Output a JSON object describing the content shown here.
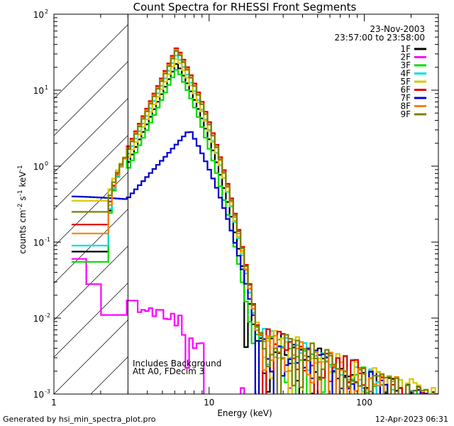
{
  "chart_data": {
    "type": "line",
    "title": "Count Spectra for RHESSI Front Segments",
    "xlabel": "Energy (keV)",
    "ylabel_parts": {
      "pre": "counts cm",
      "exp1": "-2",
      "mid1": " s",
      "exp2": "-1",
      "mid2": " keV",
      "exp3": "-1"
    },
    "xscale": "log",
    "yscale": "log",
    "xlim": [
      1,
      300
    ],
    "ylim": [
      0.001,
      100
    ],
    "x_ticks": [
      {
        "value": 1,
        "label": "1"
      },
      {
        "value": 10,
        "label": "10"
      },
      {
        "value": 100,
        "label": "100"
      }
    ],
    "y_ticks": [
      {
        "value": 0.001,
        "base": "10",
        "exp": "-3"
      },
      {
        "value": 0.01,
        "base": "10",
        "exp": "-2"
      },
      {
        "value": 0.1,
        "base": "10",
        "exp": "-1"
      },
      {
        "value": 1,
        "base": "10",
        "exp": "0"
      },
      {
        "value": 10,
        "base": "10",
        "exp": "1"
      },
      {
        "value": 100,
        "base": "10",
        "exp": "2"
      }
    ],
    "shaded_region": {
      "from": 1,
      "to": 3,
      "style": "hatched"
    },
    "date": "23-Nov-2003",
    "time_range": "23:57:00 to 23:58:00",
    "annotations": [
      "Includes Background",
      "Att A0, FDecim 3"
    ],
    "series": [
      {
        "name": "1F",
        "color": "#000000",
        "scale": 0.62,
        "low": 0.075,
        "tailshift": 0
      },
      {
        "name": "2F",
        "color": "#ff00ff",
        "type": "low"
      },
      {
        "name": "3F",
        "color": "#00dd00",
        "scale": 0.52,
        "low": 0.055,
        "tailshift": -0.4
      },
      {
        "name": "4F",
        "color": "#00e0e0",
        "scale": 0.8,
        "low": 0.09,
        "tailshift": 0.1
      },
      {
        "name": "5F",
        "color": "#d8c800",
        "scale": 0.72,
        "low": 0.35,
        "tailshift": 0.35
      },
      {
        "name": "6F",
        "color": "#e00000",
        "scale": 1.0,
        "low": 0.17,
        "tailshift": 0.15
      },
      {
        "name": "7F",
        "color": "#0000cc",
        "type": "blue"
      },
      {
        "name": "8F",
        "color": "#ff7f00",
        "scale": 0.95,
        "low": 0.13,
        "tailshift": 0.05
      },
      {
        "name": "9F",
        "color": "#7f7f00",
        "scale": 0.92,
        "low": 0.25,
        "tailshift": 0.2
      }
    ]
  },
  "footer": {
    "left": "Generated by hsi_min_spectra_plot.pro",
    "right": "12-Apr-2023 06:31"
  }
}
